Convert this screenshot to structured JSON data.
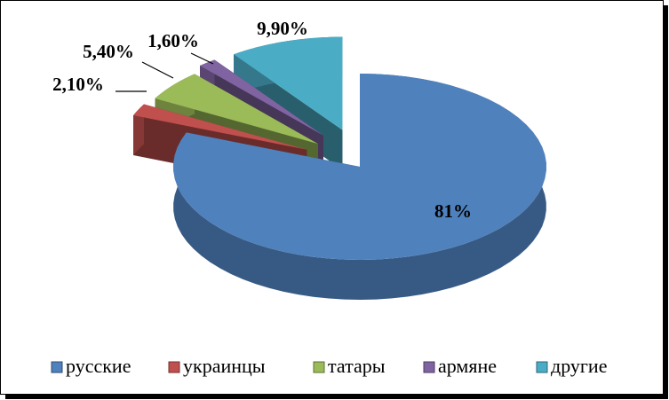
{
  "chart_data": {
    "type": "pie",
    "categories": [
      "русские",
      "украинцы",
      "татары",
      "армяне",
      "другие"
    ],
    "values": [
      81,
      2.1,
      5.4,
      1.6,
      9.9
    ],
    "value_labels": [
      "81%",
      "2,10%",
      "5,40%",
      "1,60%",
      "9,90%"
    ],
    "colors": [
      "#4f81bd",
      "#c0504d",
      "#9bbb59",
      "#8064a2",
      "#4bacc6"
    ],
    "legend": "bottom"
  }
}
